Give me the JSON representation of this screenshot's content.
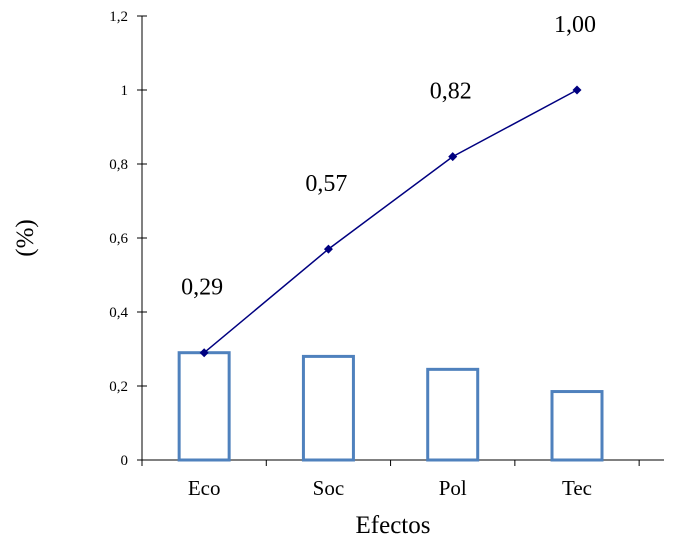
{
  "chart_data": {
    "type": "bar+line",
    "title": "",
    "xlabel": "Efectos",
    "ylabel": "(%)",
    "categories": [
      "Eco",
      "Soc",
      "Pol",
      "Tec"
    ],
    "ylim": [
      0,
      1.2
    ],
    "yticks": [
      0,
      0.2,
      0.4,
      0.6,
      0.8,
      1,
      1.2
    ],
    "ytick_labels": [
      "0",
      "0,2",
      "0,4",
      "0,6",
      "0,8",
      "1",
      "1,2"
    ],
    "grid": false,
    "legend": "none",
    "series": [
      {
        "name": "bars",
        "type": "bar",
        "values": [
          0.29,
          0.28,
          0.245,
          0.185
        ],
        "color": "#4f81bd",
        "fill": "#ffffff"
      },
      {
        "name": "cumulative",
        "type": "line",
        "values": [
          0.29,
          0.57,
          0.82,
          1.0
        ],
        "labels": [
          "0,29",
          "0,57",
          "0,82",
          "1,00"
        ],
        "color": "#000080",
        "marker": "diamond"
      }
    ],
    "axis_color": "#000000"
  }
}
